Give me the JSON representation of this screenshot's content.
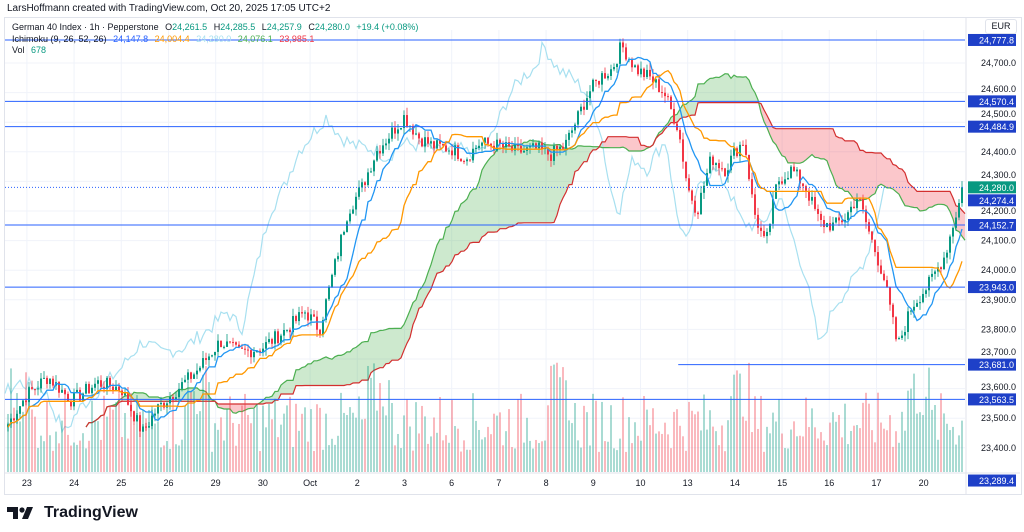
{
  "credit": "LarsHoffmann created with TradingView.com, Oct 20, 2025 17:05 UTC+2",
  "legend": {
    "symbol": "German 40 Index · 1h · Pepperstone",
    "open_label": "O",
    "open": "24,261.5",
    "high_label": "H",
    "high": "24,285.5",
    "low_label": "L",
    "low": "24,257.9",
    "close_label": "C",
    "close": "24,280.0",
    "change": "+19.4 (+0.08%)",
    "ichimoku_label": "Ichimoku (9, 26, 52, 26)",
    "ichimoku_values": [
      "24,147.8",
      "24,004.4",
      "24,280.0",
      "24,076.1",
      "23,985.1"
    ],
    "vol_label": "Vol",
    "vol": "678"
  },
  "currency": "EUR",
  "brand": "TradingView",
  "colors": {
    "up": "#089981",
    "down": "#f23645",
    "tenkan": "#2196f3",
    "kijun": "#ff9800",
    "lagging": "#a8e0f0",
    "spanA": "#4caf50",
    "spanB": "#d32f2f",
    "hline": "#2962ff",
    "label_bg": "#1e40c8"
  },
  "chart_data": {
    "type": "candlestick",
    "title": "German 40 Index · 1h · Pepperstone",
    "ylim": [
      23250,
      24800
    ],
    "y_ticks": [
      "24,700.0",
      "24,600.0",
      "24,500.0",
      "24,400.0",
      "24,300.0",
      "24,200.0",
      "24,100.0",
      "24,000.0",
      "23,900.0",
      "23,800.0",
      "23,700.0",
      "23,600.0",
      "23,500.0",
      "23,400.0"
    ],
    "y_tick_values": [
      24700,
      24600,
      24500,
      24400,
      24300,
      24200,
      24100,
      24000,
      23900,
      23800,
      23700,
      23600,
      23500,
      23400
    ],
    "x_ticks": [
      "23",
      "24",
      "25",
      "26",
      "29",
      "30",
      "Oct",
      "2",
      "3",
      "6",
      "7",
      "8",
      "9",
      "10",
      "13",
      "14",
      "15",
      "16",
      "17",
      "20"
    ],
    "x_tick_index": [
      0.4,
      1.4,
      2.4,
      3.4,
      4.4,
      5.4,
      6.4,
      7.4,
      8.4,
      9.4,
      10.4,
      11.4,
      12.4,
      13.4,
      14.4,
      15.4,
      16.4,
      17.4,
      18.4,
      19.4
    ],
    "close_path_days": [
      0,
      0.4,
      0.85,
      1.35,
      1.9,
      2.4,
      2.85,
      3.15,
      3.6,
      4.0,
      4.5,
      4.9,
      5.4,
      5.9,
      6.3,
      6.6,
      6.9,
      7.2,
      7.5,
      7.8,
      8.05,
      8.4,
      8.7,
      9.0,
      9.4,
      9.7,
      10.0,
      10.4,
      10.8,
      11.2,
      11.5,
      11.8,
      12.0,
      12.3,
      12.6,
      12.8,
      13.0,
      13.3,
      13.6,
      13.9,
      14.2,
      14.4,
      14.6,
      14.9,
      15.2,
      15.4,
      15.6,
      15.8,
      16.05,
      16.3,
      16.6,
      16.9,
      17.2,
      17.5,
      17.75,
      18.0,
      18.3,
      18.55,
      18.85,
      19.15,
      19.5,
      19.85,
      20.1,
      20.25
    ],
    "close_path_values": [
      23480,
      23580,
      23640,
      23560,
      23620,
      23600,
      23450,
      23530,
      23600,
      23660,
      23760,
      23720,
      23740,
      23800,
      23860,
      23800,
      24000,
      24200,
      24280,
      24400,
      24450,
      24520,
      24450,
      24420,
      24410,
      24380,
      24430,
      24420,
      24400,
      24410,
      24390,
      24420,
      24490,
      24600,
      24660,
      24680,
      24760,
      24680,
      24650,
      24600,
      24480,
      24280,
      24200,
      24380,
      24340,
      24400,
      24440,
      24200,
      24080,
      24300,
      24340,
      24280,
      24160,
      24150,
      24180,
      24250,
      24100,
      23980,
      23740,
      23880,
      23950,
      24050,
      24200,
      24280
    ],
    "horizontal_levels": [
      {
        "value": 24777.8,
        "label": "24,777.8"
      },
      {
        "value": 24570.4,
        "label": "24,570.4"
      },
      {
        "value": 24484.9,
        "label": "24,484.9"
      },
      {
        "value": 24280.0,
        "label": "24,280.0",
        "style": "dotted",
        "current": true
      },
      {
        "value": 24274.4,
        "label": "24,274.4",
        "noline": true
      },
      {
        "value": 24152.7,
        "label": "24,152.7"
      },
      {
        "value": 23943.0,
        "label": "23,943.0"
      },
      {
        "value": 23681.0,
        "label": "23,681.0",
        "start_day": 14.2
      },
      {
        "value": 23563.5,
        "label": "23,563.5"
      },
      {
        "value": 23289.4,
        "label": "23,289.4",
        "noline": true
      }
    ],
    "indicators": [
      "Ichimoku (9, 26, 52, 26)",
      "Vol"
    ]
  }
}
